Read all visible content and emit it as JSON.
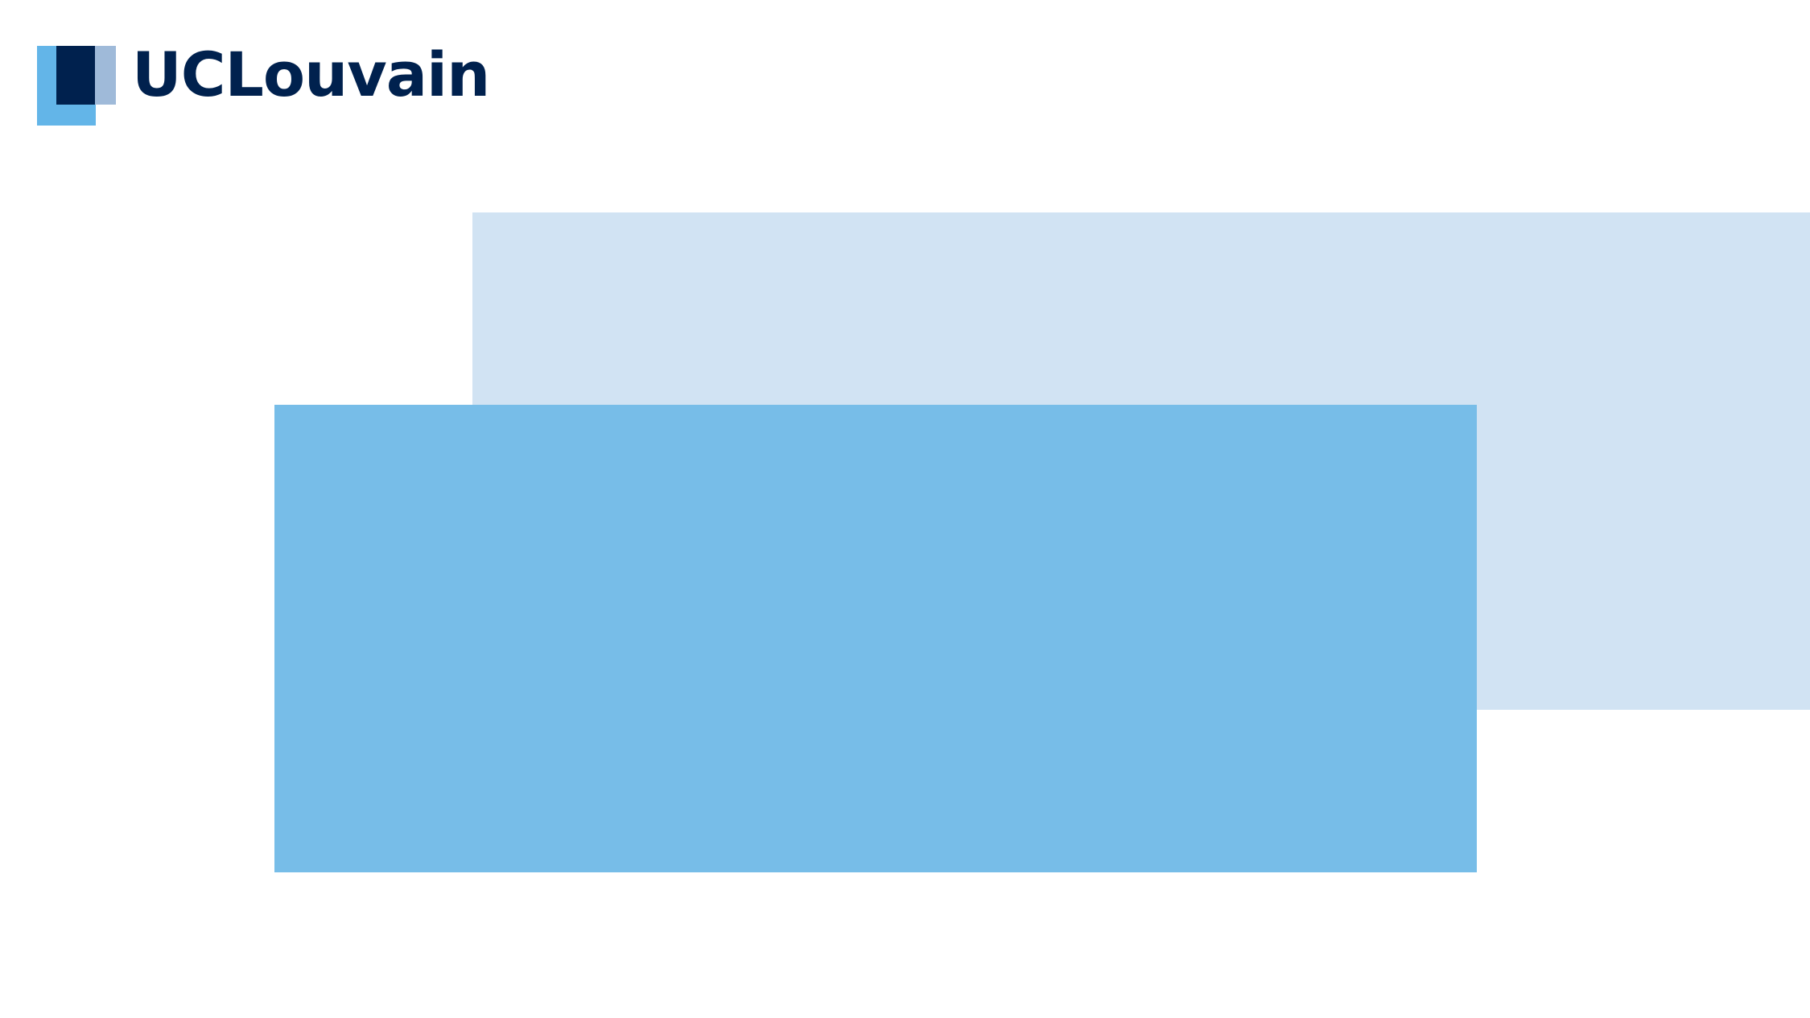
{
  "brand": {
    "wordmark": "UCLouvain",
    "logo_icon": "uclouvain-squares-icon"
  },
  "colors": {
    "background": "#ffffff",
    "logo_text": "#00214e",
    "logo_dark_square": "#00214e",
    "logo_light_square": "#63b5e8",
    "logo_pale_square": "#9fbad9",
    "panel_back": "#d1e3f3",
    "panel_front": "#77bde8"
  }
}
